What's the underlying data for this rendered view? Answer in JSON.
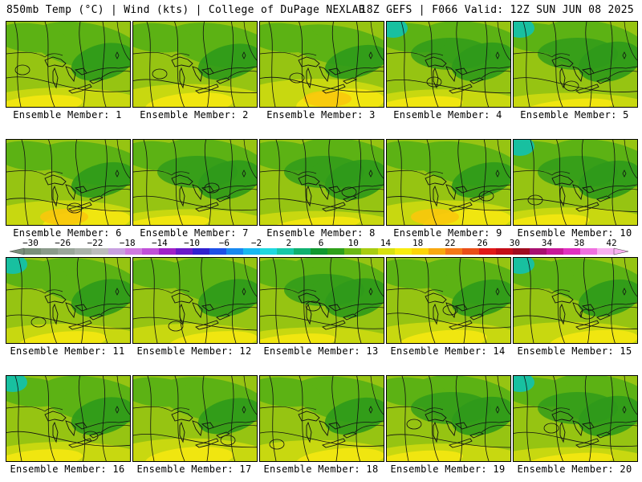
{
  "header": {
    "left": "850mb Temp (°C) | Wind (kts) | College of DuPage NEXLAB",
    "right": "18Z GEFS | F066 Valid: 12Z SUN JUN 08 2025"
  },
  "members": [
    {
      "label": "Ensemble Member: 1",
      "tone": 0.0
    },
    {
      "label": "Ensemble Member: 2",
      "tone": 0.2
    },
    {
      "label": "Ensemble Member: 3",
      "tone": 0.5
    },
    {
      "label": "Ensemble Member: 4",
      "tone": -0.1
    },
    {
      "label": "Ensemble Member: 5",
      "tone": -0.3
    },
    {
      "label": "Ensemble Member: 6",
      "tone": 0.3
    },
    {
      "label": "Ensemble Member: 7",
      "tone": -0.2
    },
    {
      "label": "Ensemble Member: 8",
      "tone": -0.3
    },
    {
      "label": "Ensemble Member: 9",
      "tone": 0.3
    },
    {
      "label": "Ensemble Member: 10",
      "tone": -0.1
    },
    {
      "label": "Ensemble Member: 11",
      "tone": 0.0
    },
    {
      "label": "Ensemble Member: 12",
      "tone": 0.0
    },
    {
      "label": "Ensemble Member: 13",
      "tone": -0.2
    },
    {
      "label": "Ensemble Member: 14",
      "tone": 0.1
    },
    {
      "label": "Ensemble Member: 15",
      "tone": 0.1
    },
    {
      "label": "Ensemble Member: 16",
      "tone": 0.0
    },
    {
      "label": "Ensemble Member: 17",
      "tone": 0.2
    },
    {
      "label": "Ensemble Member: 18",
      "tone": 0.1
    },
    {
      "label": "Ensemble Member: 19",
      "tone": -0.1
    },
    {
      "label": "Ensemble Member: 20",
      "tone": -0.3
    }
  ],
  "colorbar": {
    "labels": [
      "-30",
      "-26",
      "-22",
      "-18",
      "-14",
      "-10",
      "-6",
      "-2",
      "2",
      "6",
      "10",
      "14",
      "18",
      "22",
      "26",
      "30",
      "34",
      "38",
      "42"
    ],
    "colors": [
      "#7a8f7a",
      "#8a9a8a",
      "#9aa69a",
      "#aab2aa",
      "#bcbcbc",
      "#c8a0e0",
      "#d07ae0",
      "#c050d8",
      "#a020c8",
      "#6a18c8",
      "#3020d0",
      "#1e50e8",
      "#1888f0",
      "#18b8f0",
      "#20d8e0",
      "#18c8a8",
      "#10b070",
      "#109830",
      "#2ea01a",
      "#6cb814",
      "#a8cc10",
      "#d8e010",
      "#f8ec10",
      "#fcd408",
      "#f8a810",
      "#f47818",
      "#ea4e18",
      "#e01818",
      "#c40c18",
      "#a00c20",
      "#a81070",
      "#c81898",
      "#e030c0",
      "#f070e0",
      "#f8b0f0"
    ],
    "map_colors": {
      "dark": "#2e9a1a",
      "mid": "#5cb214",
      "light": "#96c412",
      "yellowgreen": "#c8d810",
      "yellow": "#f0e610",
      "orange": "#f8c80c",
      "teal": "#18c0a0"
    }
  }
}
